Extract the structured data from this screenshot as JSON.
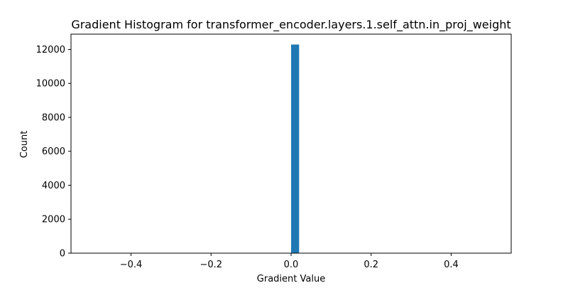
{
  "chart_data": {
    "type": "bar",
    "title": "Gradient Histogram for transformer_encoder.layers.1.self_attn.in_proj_weight",
    "xlabel": "Gradient Value",
    "ylabel": "Count",
    "xlim": [
      -0.55,
      0.55
    ],
    "ylim": [
      0,
      12900
    ],
    "x_ticks": [
      -0.4,
      -0.2,
      0.0,
      0.2,
      0.4
    ],
    "x_tick_labels": [
      "−0.4",
      "−0.2",
      "0.0",
      "0.2",
      "0.4"
    ],
    "y_ticks": [
      0,
      2000,
      4000,
      6000,
      8000,
      10000,
      12000
    ],
    "y_tick_labels": [
      "0",
      "2000",
      "4000",
      "6000",
      "8000",
      "10000",
      "12000"
    ],
    "bins": [
      {
        "x0": 0.0,
        "x1": 0.02,
        "count": 12288
      }
    ],
    "bar_color": "#1f77b4",
    "grid": false,
    "legend": "none"
  }
}
